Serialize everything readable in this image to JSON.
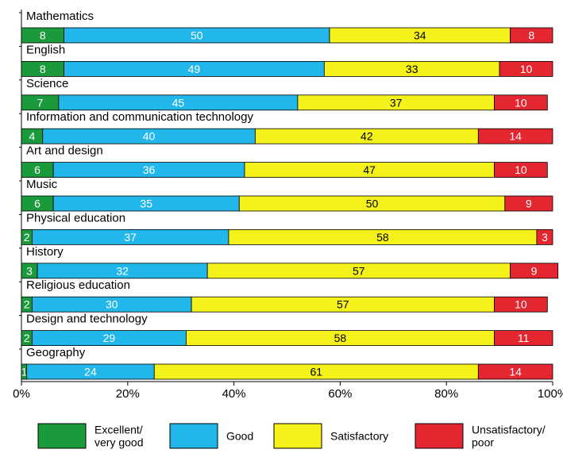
{
  "chart_data": {
    "type": "bar",
    "orientation": "horizontal",
    "stacked": true,
    "categories": [
      "Mathematics",
      "English",
      "Science",
      "Information and communication technology",
      "Art and design",
      "Music",
      "Physical education",
      "History",
      "Religious education",
      "Design and technology",
      "Geography"
    ],
    "series": [
      {
        "name": "Excellent/ very good",
        "legend_lines": [
          "Excellent/",
          "very good"
        ],
        "color": "#1a9a3a",
        "label_color": "#ffffff",
        "values": [
          8,
          8,
          7,
          4,
          6,
          6,
          2,
          3,
          2,
          2,
          1
        ]
      },
      {
        "name": "Good",
        "legend_lines": [
          "Good"
        ],
        "color": "#22b7ea",
        "label_color": "#ffffff",
        "values": [
          50,
          49,
          45,
          40,
          36,
          35,
          37,
          32,
          30,
          29,
          24
        ]
      },
      {
        "name": "Satisfactory",
        "legend_lines": [
          "Satisfactory"
        ],
        "color": "#f5f11a",
        "label_color": "#000000",
        "values": [
          34,
          33,
          37,
          42,
          47,
          50,
          58,
          57,
          57,
          58,
          61
        ]
      },
      {
        "name": "Unsatisfactory/ poor",
        "legend_lines": [
          "Unsatisfactory/",
          "poor"
        ],
        "color": "#e3262f",
        "label_color": "#ffffff",
        "values": [
          8,
          10,
          10,
          14,
          10,
          9,
          3,
          9,
          10,
          11,
          14
        ]
      }
    ],
    "xlim": [
      0,
      100
    ],
    "x_ticks": [
      "0%",
      "20%",
      "40%",
      "60%",
      "80%",
      "100%"
    ],
    "grid": false,
    "legend_position": "bottom",
    "title": "",
    "xlabel": "",
    "ylabel": ""
  }
}
